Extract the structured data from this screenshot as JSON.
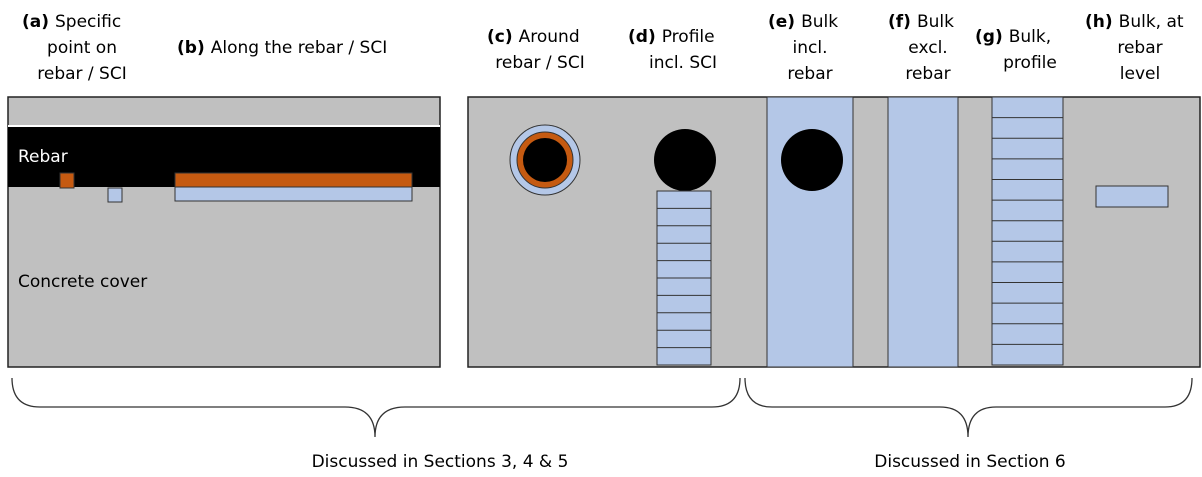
{
  "labels": [
    {
      "letter": "(a)",
      "lines": [
        "Specific",
        "point on",
        "rebar / SCI"
      ]
    },
    {
      "letter": "(b)",
      "lines": [
        "Along the rebar / SCI"
      ]
    },
    {
      "letter": "(c)",
      "lines": [
        "Around",
        "rebar / SCI"
      ]
    },
    {
      "letter": "(d)",
      "lines": [
        "Profile",
        "incl. SCI"
      ]
    },
    {
      "letter": "(e)",
      "lines": [
        "Bulk",
        "incl.",
        "rebar"
      ]
    },
    {
      "letter": "(f)",
      "lines": [
        "Bulk",
        "excl.",
        "rebar"
      ]
    },
    {
      "letter": "(g)",
      "lines": [
        "Bulk,",
        "profile"
      ]
    },
    {
      "letter": "(h)",
      "lines": [
        "Bulk, at",
        "rebar",
        "level"
      ]
    }
  ],
  "inner": {
    "rebar": "Rebar",
    "cover": "Concrete cover"
  },
  "brackets": [
    "Discussed in Sections 3, 4 & 5",
    "Discussed in Section 6"
  ]
}
